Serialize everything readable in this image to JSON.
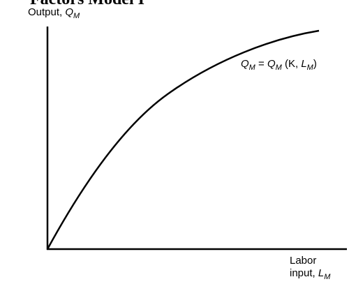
{
  "title": "Factors Model I",
  "y_axis_label": {
    "text": "Output, ",
    "var": "Q",
    "sub": "M"
  },
  "curve_label": {
    "lhs_var": "Q",
    "lhs_sub": "M",
    "eq": " = ",
    "rhs_var": "Q",
    "rhs_sub": "M",
    "args_open": " (K, ",
    "arg_var": "L",
    "arg_sub": "M",
    "args_close": ")"
  },
  "x_axis_label": {
    "line1": "Labor",
    "line2": "input, ",
    "var": "L",
    "sub": "M"
  }
}
